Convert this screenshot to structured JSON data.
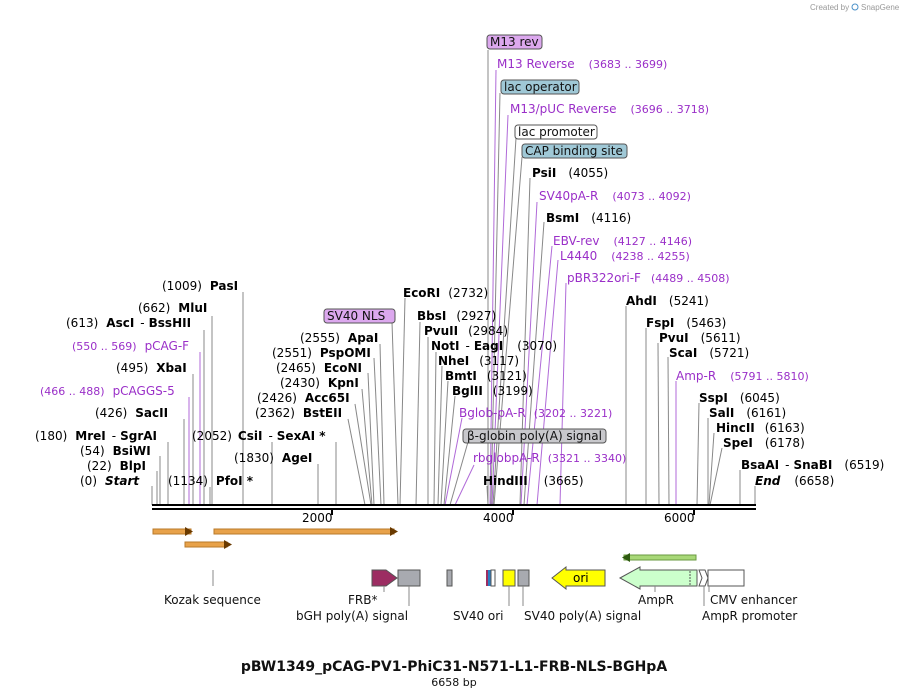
{
  "credit": {
    "created_by": "Created by",
    "brand": "SnapGene"
  },
  "title": "pBW1349_pCAG-PV1-PhiC31-N571-L1-FRB-NLS-BGHpA",
  "length_label": "6658 bp",
  "ruler": {
    "ticks": [
      "2000",
      "4000",
      "6000"
    ]
  },
  "left_sites": {
    "pasi": {
      "pos": "(1009)",
      "name": "PasI"
    },
    "mlui": {
      "pos": "(662)",
      "name": "MluI"
    },
    "asci": {
      "pos": "(613)",
      "name": "AscI",
      "sep": "-",
      "name2": "BssHII"
    },
    "pcagf": {
      "range": "(550 .. 569)",
      "name": "pCAG-F"
    },
    "xbai": {
      "pos": "(495)",
      "name": "XbaI"
    },
    "pcaggs5": {
      "range": "(466 .. 488)",
      "name": "pCAGGS-5"
    },
    "saci": {
      "pos": "(426)",
      "name": "SacII"
    },
    "mrei": {
      "pos": "(180)",
      "name": "MreI",
      "sep": "-",
      "name2": "SgrAI"
    },
    "bsiwi": {
      "pos": "(54)",
      "name": "BsiWI"
    },
    "blpi": {
      "pos": "(22)",
      "name": "BlpI"
    },
    "start": {
      "pos": "(0)",
      "name": "Start"
    },
    "pfoi": {
      "pos": "(1134)",
      "name": "PfoI *"
    },
    "csii": {
      "pos": "(2052)",
      "name": "CsiI",
      "sep": "-",
      "name2": "SexAI *"
    },
    "agei": {
      "pos": "(1830)",
      "name": "AgeI"
    }
  },
  "mid_sites": {
    "sv40nls": "SV40 NLS",
    "apai": {
      "pos": "(2555)",
      "name": "ApaI"
    },
    "pspomi": {
      "pos": "(2551)",
      "name": "PspOMI"
    },
    "econi": {
      "pos": "(2465)",
      "name": "EcoNI"
    },
    "kpni": {
      "pos": "(2430)",
      "name": "KpnI"
    },
    "acc65i": {
      "pos": "(2426)",
      "name": "Acc65I"
    },
    "bsteii": {
      "pos": "(2362)",
      "name": "BstEII"
    },
    "ecori": {
      "name": "EcoRI",
      "pos": "(2732)"
    },
    "bbsi": {
      "name": "BbsI",
      "pos": "(2927)"
    },
    "pvuii": {
      "name": "PvuII",
      "pos": "(2984)"
    },
    "noti": {
      "name": "NotI",
      "sep": "-",
      "name2": "EagI",
      "pos": "(3070)"
    },
    "nhei": {
      "name": "NheI",
      "pos": "(3117)"
    },
    "bmti": {
      "name": "BmtI",
      "pos": "(3121)"
    },
    "bglii": {
      "name": "BglII",
      "pos": "(3199)"
    },
    "bglobpa": {
      "name": "Bglob-pA-R",
      "range": "(3202 .. 3221)"
    },
    "bglobin": "β-globin poly(A) signal",
    "rbglob": {
      "name": "rbglobpA-R",
      "range": "(3321 .. 3340)"
    },
    "hindiii": {
      "name": "HindIII",
      "pos": "(3665)"
    }
  },
  "top_sites": {
    "m13rev": "M13 rev",
    "m13reverse": {
      "name": "M13 Reverse",
      "range": "(3683 .. 3699)"
    },
    "lacop": "lac operator",
    "m13puc": {
      "name": "M13/pUC Reverse",
      "range": "(3696 .. 3718)"
    },
    "lacprom": "lac promoter",
    "cap": "CAP binding site",
    "psii": {
      "name": "PsiI",
      "pos": "(4055)"
    },
    "sv40par": {
      "name": "SV40pA-R",
      "range": "(4073 .. 4092)"
    },
    "bsmi": {
      "name": "BsmI",
      "pos": "(4116)"
    },
    "ebvrev": {
      "name": "EBV-rev",
      "range": "(4127 .. 4146)"
    },
    "l4440": {
      "name": "L4440",
      "range": "(4238 .. 4255)"
    },
    "pbr322": {
      "name": "pBR322ori-F",
      "range": "(4489 .. 4508)"
    }
  },
  "right_sites": {
    "ahdi": {
      "name": "AhdI",
      "pos": "(5241)"
    },
    "fspi": {
      "name": "FspI",
      "pos": "(5463)"
    },
    "pvui": {
      "name": "PvuI",
      "pos": "(5611)"
    },
    "scai": {
      "name": "ScaI",
      "pos": "(5721)"
    },
    "ampr": {
      "name": "Amp-R",
      "range": "(5791 .. 5810)"
    },
    "sspi": {
      "name": "SspI",
      "pos": "(6045)"
    },
    "sali": {
      "name": "SalI",
      "pos": "(6161)"
    },
    "hincii": {
      "name": "HincII",
      "pos": "(6163)"
    },
    "spei": {
      "name": "SpeI",
      "pos": "(6178)"
    },
    "bsaai": {
      "name": "BsaAI",
      "sep": "-",
      "name2": "SnaBI",
      "pos": "(6519)"
    },
    "end": {
      "name": "End",
      "pos": "(6658)"
    }
  },
  "features": {
    "kozak": "Kozak sequence",
    "frb": "FRB*",
    "bgh": "bGH poly(A) signal",
    "sv40ori": "SV40 ori",
    "sv40pa": "SV40 poly(A) signal",
    "ori": "ori",
    "ampr": "AmpR",
    "cmv": "CMV enhancer",
    "amprprom": "AmpR promoter"
  },
  "colors": {
    "purple_primer": "#9a2fc8",
    "m13rev_fill": "#dca8ee",
    "lacop_fill": "#9fc8d6",
    "frb_fill": "#9c2d62",
    "ori_fill": "#ffff00",
    "ampr_fill": "#ccffcc",
    "orange_orf": "#e8a24a"
  }
}
